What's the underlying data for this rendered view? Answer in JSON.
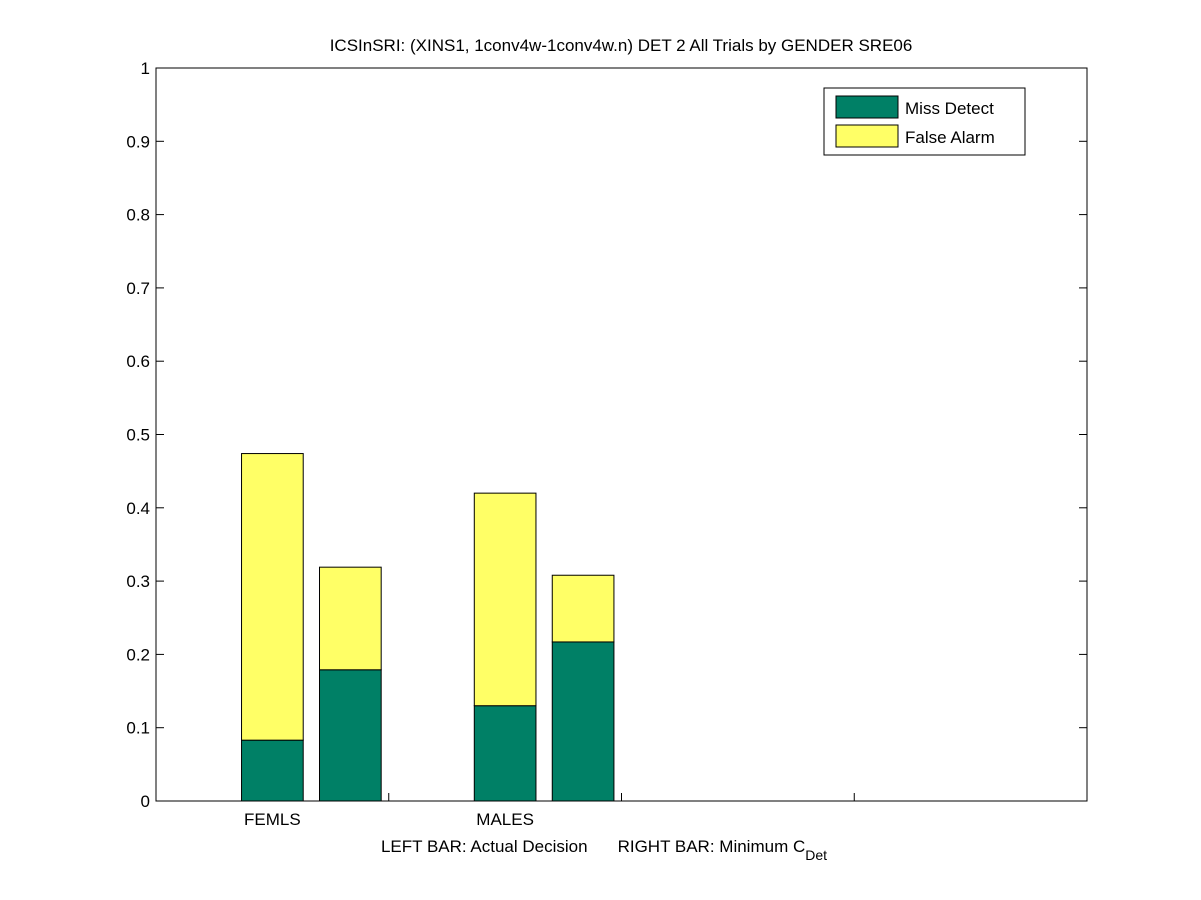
{
  "chart_data": {
    "type": "bar",
    "stacked": true,
    "title": "ICSInSRI: (XINS1, 1conv4w-1conv4w.n) DET 2 All Trials by GENDER SRE06",
    "xlabel_left": "LEFT BAR: Actual Decision",
    "xlabel_right_prefix": "RIGHT BAR: Minimum C",
    "xlabel_right_sub": "Det",
    "categories": [
      "FEMLS",
      "MALES"
    ],
    "bar_roles": [
      "Actual Decision",
      "Minimum C_Det"
    ],
    "bars": [
      {
        "category": "FEMLS",
        "role": "Actual Decision",
        "miss": 0.083,
        "false_alarm": 0.391
      },
      {
        "category": "FEMLS",
        "role": "Minimum C_Det",
        "miss": 0.179,
        "false_alarm": 0.14
      },
      {
        "category": "MALES",
        "role": "Actual Decision",
        "miss": 0.13,
        "false_alarm": 0.29
      },
      {
        "category": "MALES",
        "role": "Minimum C_Det",
        "miss": 0.217,
        "false_alarm": 0.091
      }
    ],
    "series": [
      {
        "name": "Miss Detect",
        "color": "#008066"
      },
      {
        "name": "False Alarm",
        "color": "#ffff66"
      }
    ],
    "ylim": [
      0,
      1
    ],
    "yticks": [
      "0",
      "0.1",
      "0.2",
      "0.3",
      "0.4",
      "0.5",
      "0.6",
      "0.7",
      "0.8",
      "0.9",
      "1"
    ],
    "legend_position": "top-right",
    "grid": false
  }
}
